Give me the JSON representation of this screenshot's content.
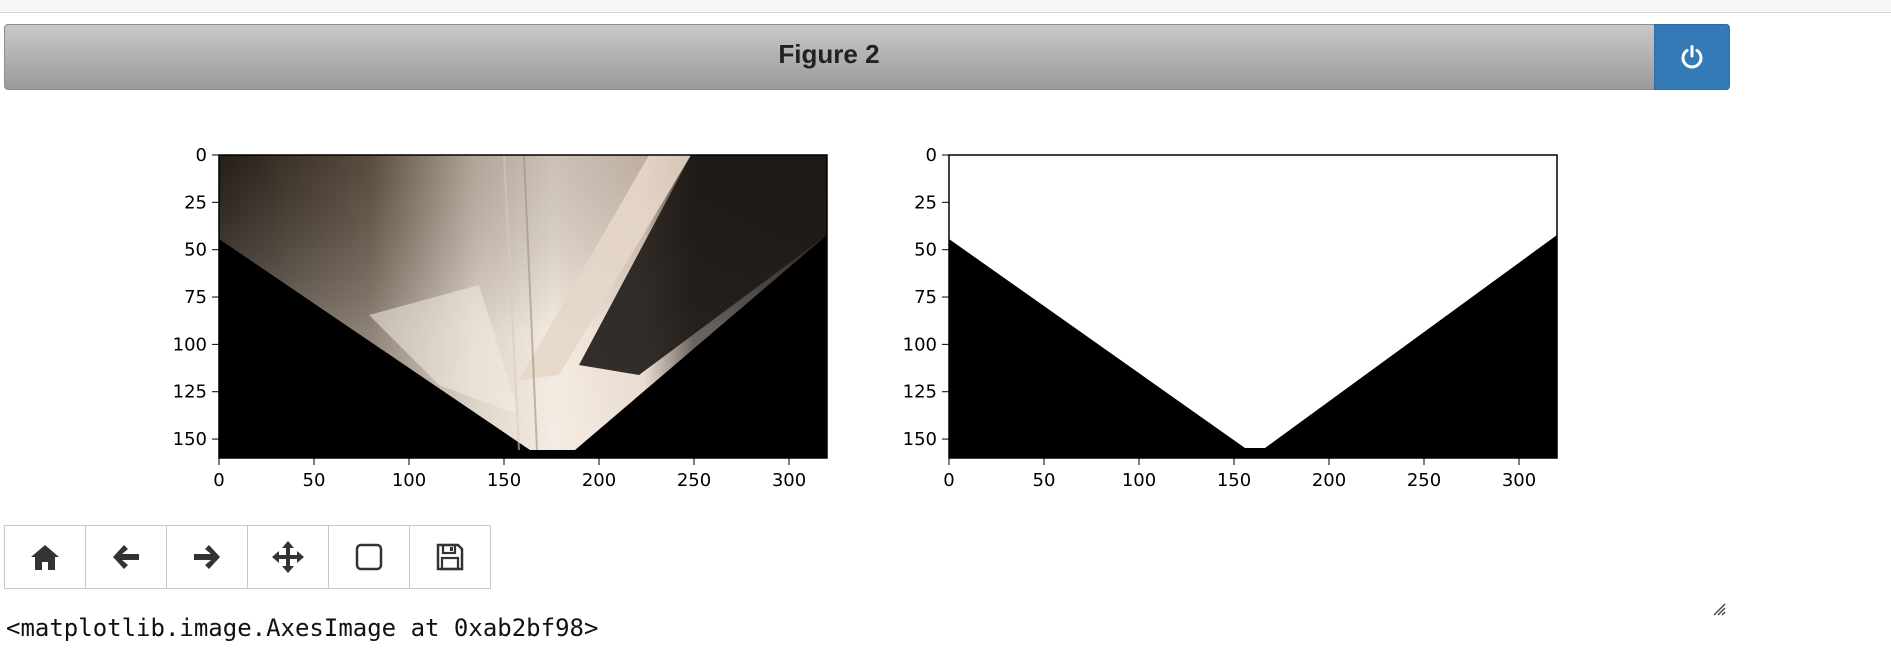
{
  "figure": {
    "title": "Figure 2",
    "power_icon": "power-icon"
  },
  "plots": [
    {
      "name": "warped-image",
      "kind": "image",
      "x_ticks": [
        "0",
        "50",
        "100",
        "150",
        "200",
        "250",
        "300"
      ],
      "y_ticks": [
        "0",
        "25",
        "50",
        "75",
        "100",
        "125",
        "150"
      ]
    },
    {
      "name": "mask-image",
      "kind": "binary-mask",
      "x_ticks": [
        "0",
        "50",
        "100",
        "150",
        "200",
        "250",
        "300"
      ],
      "y_ticks": [
        "0",
        "25",
        "50",
        "75",
        "100",
        "125",
        "150"
      ]
    }
  ],
  "toolbar": {
    "buttons": [
      {
        "name": "home-button",
        "icon": "home-icon"
      },
      {
        "name": "back-button",
        "icon": "arrow-left-icon"
      },
      {
        "name": "forward-button",
        "icon": "arrow-right-icon"
      },
      {
        "name": "pan-button",
        "icon": "move-icon"
      },
      {
        "name": "zoom-button",
        "icon": "square-icon"
      },
      {
        "name": "save-button",
        "icon": "floppy-icon"
      }
    ]
  },
  "output": {
    "text": "<matplotlib.image.AxesImage at 0xab2bf98>"
  },
  "colors": {
    "power_button": "#337ab7",
    "titlebar_top": "#c8c8c8",
    "titlebar_bottom": "#9a9a9a"
  }
}
